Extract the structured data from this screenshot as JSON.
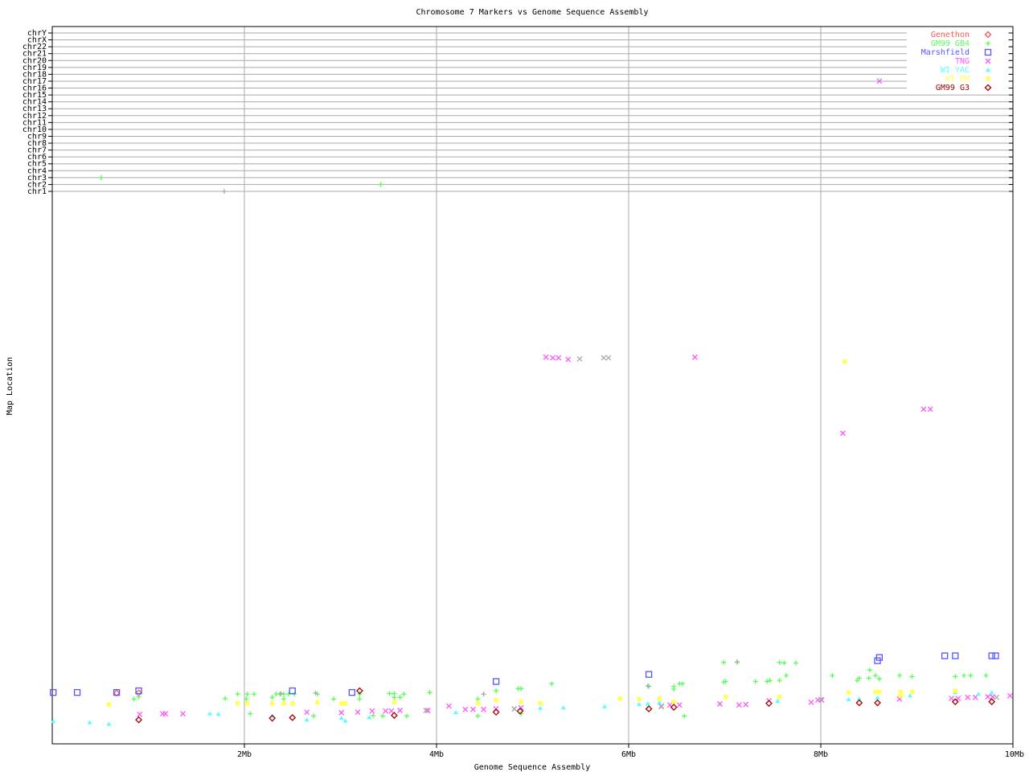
{
  "chart_data": {
    "type": "scatter",
    "title": "Chromosome 7 Markers vs Genome Sequence Assembly",
    "xlabel": "Genome Sequence Assembly",
    "ylabel": "Map Location",
    "xlim": [
      0,
      10
    ],
    "x_unit": "Mb",
    "x_ticks": [
      "2Mb",
      "4Mb",
      "6Mb",
      "8Mb",
      "10Mb"
    ],
    "x_tick_values": [
      2,
      4,
      6,
      8,
      10
    ],
    "y_categories": [
      "chr1",
      "chr2",
      "chr3",
      "chr4",
      "chr5",
      "chr6",
      "chr7",
      "chr8",
      "chr9",
      "chr10",
      "chr11",
      "chr12",
      "chr13",
      "chr14",
      "chr15",
      "chr16",
      "chr17",
      "chr18",
      "chr19",
      "chr20",
      "chr21",
      "chr22",
      "chrX",
      "chrY"
    ],
    "ylim_map": [
      0,
      100
    ],
    "grid": true,
    "legend_position": "top-right",
    "series": [
      {
        "name": "Genethon",
        "color": "#ff5555",
        "marker": "diamond",
        "points": [
          [
            0.67,
            9.3
          ],
          [
            0.9,
            9.3
          ]
        ],
        "chr_points": []
      },
      {
        "name": "GM99 GB4",
        "color": "#55ff55",
        "marker": "plus",
        "points": [
          [
            0.85,
            8.2
          ],
          [
            0.9,
            8.6
          ],
          [
            1.8,
            8.3
          ],
          [
            1.93,
            9.1
          ],
          [
            2.03,
            9.1
          ],
          [
            2.1,
            9.1
          ],
          [
            2.02,
            8.2
          ],
          [
            2.06,
            5.5
          ],
          [
            2.29,
            8.5
          ],
          [
            2.33,
            9.1
          ],
          [
            2.37,
            9.1
          ],
          [
            2.41,
            9.1
          ],
          [
            2.46,
            9.1
          ],
          [
            2.52,
            9.1
          ],
          [
            2.41,
            8.2
          ],
          [
            2.76,
            9.1
          ],
          [
            2.93,
            8.2
          ],
          [
            2.72,
            5.1
          ],
          [
            3.2,
            9.1
          ],
          [
            3.2,
            8.2
          ],
          [
            3.51,
            9.2
          ],
          [
            3.56,
            9.2
          ],
          [
            3.56,
            8.5
          ],
          [
            3.62,
            8.5
          ],
          [
            3.66,
            9.1
          ],
          [
            3.93,
            9.4
          ],
          [
            3.34,
            5.2
          ],
          [
            3.44,
            5.1
          ],
          [
            3.69,
            5.1
          ],
          [
            4.43,
            8.2
          ],
          [
            4.49,
            9.1
          ],
          [
            4.62,
            9.7
          ],
          [
            4.43,
            5.1
          ],
          [
            4.85,
            10.1
          ],
          [
            4.88,
            10.1
          ],
          [
            4.88,
            5.5
          ],
          [
            5.2,
            11.0
          ],
          [
            6.21,
            10.5
          ],
          [
            6.47,
            10.5
          ],
          [
            6.47,
            10.0
          ],
          [
            6.53,
            11.0
          ],
          [
            6.56,
            11.0
          ],
          [
            6.58,
            5.1
          ],
          [
            6.99,
            14.9
          ],
          [
            7.13,
            14.9
          ],
          [
            6.99,
            11.3
          ],
          [
            7.01,
            11.4
          ],
          [
            7.32,
            11.4
          ],
          [
            7.44,
            11.4
          ],
          [
            7.47,
            11.6
          ],
          [
            7.57,
            11.6
          ],
          [
            7.57,
            14.9
          ],
          [
            7.62,
            14.8
          ],
          [
            7.64,
            12.5
          ],
          [
            7.74,
            14.8
          ],
          [
            8.12,
            12.5
          ],
          [
            8.38,
            11.6
          ],
          [
            8.4,
            12.0
          ],
          [
            8.5,
            12.0
          ],
          [
            8.51,
            13.5
          ],
          [
            8.57,
            12.5
          ],
          [
            8.61,
            11.9
          ],
          [
            8.82,
            12.5
          ],
          [
            8.95,
            12.3
          ],
          [
            9.4,
            12.3
          ],
          [
            9.49,
            12.5
          ],
          [
            9.56,
            12.5
          ],
          [
            9.72,
            12.5
          ]
        ],
        "chr_points": [
          [
            0.51,
            "chr3"
          ],
          [
            3.42,
            "chr2"
          ]
        ]
      },
      {
        "name": "Marshfield",
        "color": "#5555ff",
        "marker": "square",
        "points": [
          [
            0.01,
            9.4
          ],
          [
            0.26,
            9.4
          ],
          [
            0.67,
            9.4
          ],
          [
            0.9,
            9.7
          ],
          [
            2.5,
            9.7
          ],
          [
            3.12,
            9.4
          ],
          [
            4.62,
            11.4
          ],
          [
            6.21,
            12.7
          ],
          [
            8.59,
            15.2
          ],
          [
            8.61,
            15.8
          ],
          [
            9.29,
            16.1
          ],
          [
            9.4,
            16.1
          ],
          [
            9.78,
            16.1
          ],
          [
            9.82,
            16.1
          ]
        ],
        "chr_points": []
      },
      {
        "name": "TNG",
        "color": "#ff55ff",
        "marker": "cross",
        "points": [
          [
            0.91,
            5.4
          ],
          [
            1.15,
            5.5
          ],
          [
            1.18,
            5.5
          ],
          [
            1.36,
            5.5
          ],
          [
            2.65,
            5.8
          ],
          [
            3.01,
            5.7
          ],
          [
            3.18,
            5.8
          ],
          [
            3.33,
            6.0
          ],
          [
            3.47,
            6.0
          ],
          [
            3.53,
            6.0
          ],
          [
            3.62,
            6.1
          ],
          [
            3.91,
            6.1
          ],
          [
            4.13,
            6.9
          ],
          [
            4.3,
            6.3
          ],
          [
            4.38,
            6.3
          ],
          [
            4.49,
            6.3
          ],
          [
            4.62,
            6.4
          ],
          [
            4.81,
            6.4
          ],
          [
            4.88,
            6.6
          ],
          [
            5.14,
            70.7
          ],
          [
            5.21,
            70.6
          ],
          [
            5.27,
            70.6
          ],
          [
            5.37,
            70.3
          ],
          [
            6.69,
            70.7
          ],
          [
            6.34,
            6.9
          ],
          [
            6.43,
            7.1
          ],
          [
            6.53,
            7.1
          ],
          [
            6.95,
            7.3
          ],
          [
            7.15,
            7.1
          ],
          [
            7.22,
            7.2
          ],
          [
            7.46,
            7.9
          ],
          [
            7.9,
            7.6
          ],
          [
            7.97,
            8.0
          ],
          [
            8.01,
            8.0
          ],
          [
            8.23,
            56.8
          ],
          [
            8.82,
            8.2
          ],
          [
            9.07,
            61.2
          ],
          [
            9.14,
            61.2
          ],
          [
            9.36,
            8.3
          ],
          [
            9.43,
            8.3
          ],
          [
            9.53,
            8.5
          ],
          [
            9.61,
            8.5
          ],
          [
            9.74,
            8.6
          ],
          [
            9.79,
            8.6
          ],
          [
            9.97,
            8.8
          ]
        ],
        "chr_points": [
          [
            8.61,
            "chr17"
          ]
        ]
      },
      {
        "name": "WI YAC",
        "color": "#55ffff",
        "marker": "triangle",
        "points": [
          [
            0.01,
            4.1
          ],
          [
            0.39,
            3.9
          ],
          [
            0.59,
            3.6
          ],
          [
            1.64,
            5.5
          ],
          [
            1.73,
            5.4
          ],
          [
            2.29,
            5.1
          ],
          [
            2.65,
            4.4
          ],
          [
            3.01,
            4.7
          ],
          [
            3.05,
            4.2
          ],
          [
            3.3,
            4.8
          ],
          [
            4.2,
            5.7
          ],
          [
            4.87,
            6.4
          ],
          [
            5.08,
            6.5
          ],
          [
            5.32,
            6.6
          ],
          [
            5.75,
            6.8
          ],
          [
            6.11,
            7.2
          ],
          [
            6.2,
            7.3
          ],
          [
            6.32,
            7.5
          ],
          [
            7.55,
            7.8
          ],
          [
            8.29,
            8.1
          ],
          [
            8.4,
            8.2
          ],
          [
            8.59,
            8.4
          ],
          [
            8.93,
            8.8
          ],
          [
            9.4,
            9.4
          ],
          [
            9.64,
            9.1
          ],
          [
            9.78,
            9.4
          ]
        ],
        "chr_points": []
      },
      {
        "name": "WI RH",
        "color": "#ffff55",
        "marker": "star",
        "points": [
          [
            0.59,
            7.2
          ],
          [
            1.93,
            7.4
          ],
          [
            2.03,
            7.4
          ],
          [
            2.29,
            7.4
          ],
          [
            2.41,
            7.4
          ],
          [
            2.5,
            7.4
          ],
          [
            2.76,
            7.6
          ],
          [
            3.01,
            7.4
          ],
          [
            3.05,
            7.4
          ],
          [
            3.56,
            7.6
          ],
          [
            4.43,
            7.4
          ],
          [
            4.62,
            8.0
          ],
          [
            4.88,
            7.7
          ],
          [
            5.08,
            7.4
          ],
          [
            5.91,
            8.3
          ],
          [
            6.11,
            8.2
          ],
          [
            6.32,
            8.3
          ],
          [
            6.47,
            7.7
          ],
          [
            7.01,
            8.6
          ],
          [
            7.57,
            8.6
          ],
          [
            8.25,
            69.9
          ],
          [
            8.29,
            9.4
          ],
          [
            8.57,
            9.5
          ],
          [
            8.61,
            9.5
          ],
          [
            8.83,
            9.5
          ],
          [
            8.83,
            8.8
          ],
          [
            8.95,
            9.5
          ],
          [
            9.4,
            9.7
          ]
        ],
        "chr_points": []
      },
      {
        "name": "GM99 G3",
        "color": "#aa0000",
        "marker": "diamond",
        "points": [
          [
            0.9,
            4.4
          ],
          [
            2.29,
            4.7
          ],
          [
            2.5,
            4.8
          ],
          [
            3.2,
            9.7
          ],
          [
            3.56,
            5.2
          ],
          [
            4.62,
            5.8
          ],
          [
            4.87,
            6.0
          ],
          [
            6.21,
            6.4
          ],
          [
            6.47,
            6.7
          ],
          [
            7.46,
            7.4
          ],
          [
            8.4,
            7.5
          ],
          [
            8.59,
            7.5
          ],
          [
            9.4,
            7.7
          ],
          [
            9.78,
            7.7
          ]
        ],
        "chr_points": []
      },
      {
        "color": "#aaaaaa",
        "marker": "plus",
        "points": [
          [
            2.74,
            9.3
          ],
          [
            2.38,
            9.2
          ],
          [
            6.2,
            10.6
          ],
          [
            7.13,
            15.0
          ],
          [
            4.49,
            9.1
          ]
        ],
        "chr_points": [
          [
            1.79,
            "chr1"
          ]
        ]
      },
      {
        "color": "#aaaaaa",
        "marker": "cross",
        "points": [
          [
            5.49,
            70.4
          ],
          [
            5.74,
            70.6
          ],
          [
            5.79,
            70.6
          ],
          [
            3.89,
            6.1
          ],
          [
            4.81,
            6.4
          ],
          [
            6.34,
            6.8
          ],
          [
            8.0,
            8.1
          ],
          [
            9.83,
            8.5
          ]
        ],
        "chr_points": []
      }
    ]
  }
}
